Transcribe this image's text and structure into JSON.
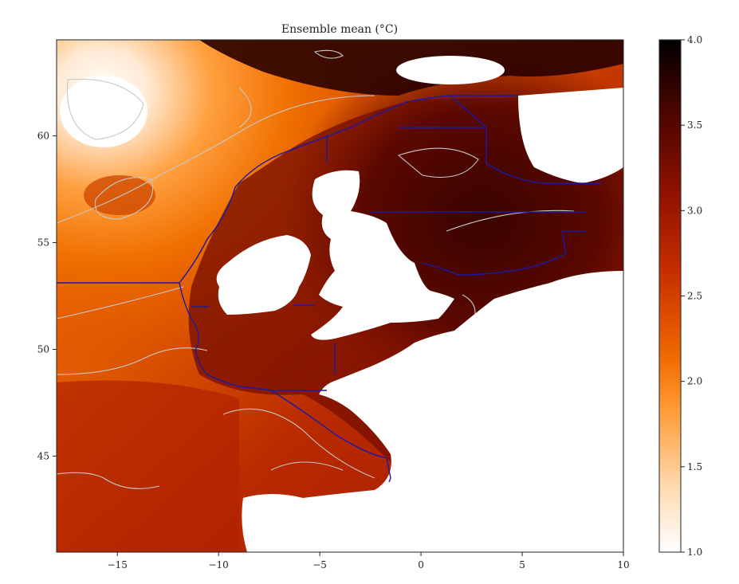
{
  "title": "Ensemble mean (°C)",
  "map": {
    "lon_range": [
      -18,
      10
    ],
    "lat_range": [
      40.5,
      64.5
    ],
    "x_ticks": [
      -15,
      -10,
      -5,
      0,
      5,
      10
    ],
    "x_tick_labels": [
      "−15",
      "−10",
      "−5",
      "0",
      "5",
      "10"
    ],
    "y_ticks": [
      45,
      50,
      55,
      60
    ],
    "y_tick_labels": [
      "45",
      "50",
      "55",
      "60"
    ],
    "contour_color": "#c8c8c8",
    "boundary_color": "#1a1aa8",
    "land_color": "#ffffff"
  },
  "colorbar": {
    "min": 1.0,
    "max": 4.0,
    "ticks": [
      1.0,
      1.5,
      2.0,
      2.5,
      3.0,
      3.5,
      4.0
    ],
    "tick_labels": [
      "1.0",
      "1.5",
      "2.0",
      "2.5",
      "3.0",
      "3.5",
      "4.0"
    ],
    "colormap_stops": [
      "#ffffff",
      "#ffd9b0",
      "#ff9a33",
      "#f26b00",
      "#c83000",
      "#9a1400",
      "#5a0600",
      "#000000"
    ]
  }
}
